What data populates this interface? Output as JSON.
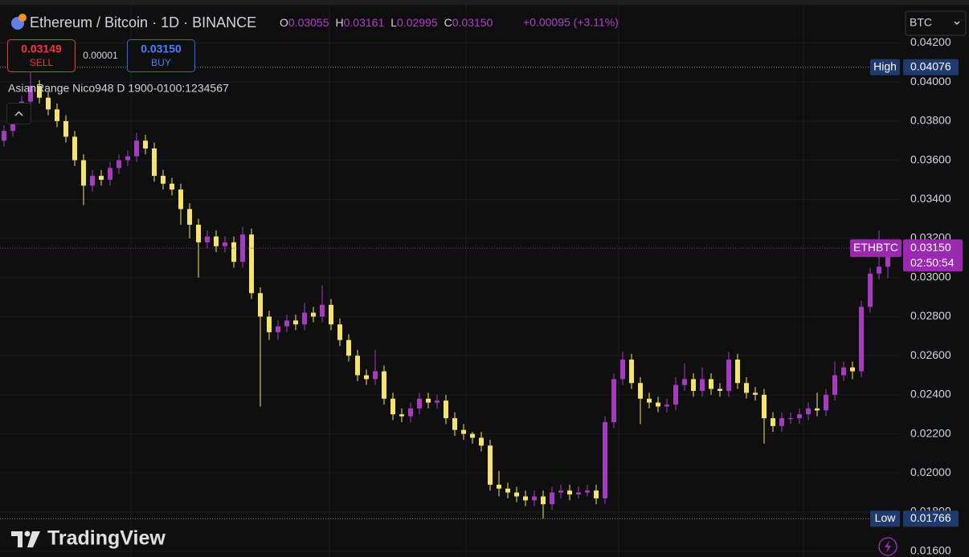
{
  "header": {
    "symbol": "Ethereum / Bitcoin · 1D · BINANCE",
    "ohlc": [
      {
        "key": "O",
        "value": "0.03055"
      },
      {
        "key": "H",
        "value": "0.03161"
      },
      {
        "key": "L",
        "value": "0.02995"
      },
      {
        "key": "C",
        "value": "0.03150"
      }
    ],
    "change": "+0.00095 (+3.11%)",
    "currency": "BTC"
  },
  "trade": {
    "sell_price": "0.03149",
    "sell_label": "SELL",
    "spread": "0.00001",
    "buy_price": "0.03150",
    "buy_label": "BUY"
  },
  "indicator": "AsianRange Nico948 D 1900-0100:1234567",
  "branding": "TradingView",
  "chart_data": {
    "type": "candlestick",
    "up_color": "#a63bc2",
    "down_color": "#f5e36b",
    "ylim": [
      0.0157,
      0.04395
    ],
    "yticks": [
      {
        "value": 0.042,
        "label": "0.04200"
      },
      {
        "value": 0.04,
        "label": "0.04000"
      },
      {
        "value": 0.038,
        "label": "0.03800"
      },
      {
        "value": 0.036,
        "label": "0.03600"
      },
      {
        "value": 0.034,
        "label": "0.03400"
      },
      {
        "value": 0.032,
        "label": "0.03200"
      },
      {
        "value": 0.03,
        "label": "0.03000"
      },
      {
        "value": 0.028,
        "label": "0.02800"
      },
      {
        "value": 0.026,
        "label": "0.02600"
      },
      {
        "value": 0.024,
        "label": "0.02400"
      },
      {
        "value": 0.022,
        "label": "0.02200"
      },
      {
        "value": 0.02,
        "label": "0.02000"
      },
      {
        "value": 0.018,
        "label": "0.01800"
      },
      {
        "value": 0.016,
        "label": "0.01600"
      }
    ],
    "grid": true,
    "high": {
      "label": "High",
      "value": 0.04076
    },
    "low": {
      "label": "Low",
      "value": 0.01766
    },
    "last": {
      "label": "ETHBTC",
      "value": {
        "value": 0.0315,
        "label": "0.03150"
      },
      "countdown": "02:50:54"
    },
    "ohlc": [
      [
        0.037,
        0.0378,
        0.0367,
        0.0375
      ],
      [
        0.0375,
        0.0385,
        0.0372,
        0.0382
      ],
      [
        0.0382,
        0.0393,
        0.0379,
        0.039
      ],
      [
        0.039,
        0.04076,
        0.0387,
        0.0398
      ],
      [
        0.0398,
        0.0401,
        0.0389,
        0.0392
      ],
      [
        0.0392,
        0.0395,
        0.0383,
        0.0386
      ],
      [
        0.0386,
        0.0389,
        0.0377,
        0.038
      ],
      [
        0.038,
        0.0383,
        0.0369,
        0.0372
      ],
      [
        0.0372,
        0.0375,
        0.0357,
        0.036
      ],
      [
        0.036,
        0.0363,
        0.0337,
        0.0347
      ],
      [
        0.0347,
        0.0355,
        0.0344,
        0.0352
      ],
      [
        0.0352,
        0.0355,
        0.0347,
        0.035
      ],
      [
        0.035,
        0.0359,
        0.0347,
        0.0356
      ],
      [
        0.0356,
        0.0363,
        0.0353,
        0.036
      ],
      [
        0.036,
        0.0365,
        0.0357,
        0.0362
      ],
      [
        0.0362,
        0.0374,
        0.0359,
        0.037
      ],
      [
        0.037,
        0.0373,
        0.0363,
        0.0366
      ],
      [
        0.0366,
        0.0369,
        0.0349,
        0.0352
      ],
      [
        0.0352,
        0.0355,
        0.0345,
        0.0348
      ],
      [
        0.0348,
        0.0351,
        0.0342,
        0.0345
      ],
      [
        0.0345,
        0.0348,
        0.0327,
        0.0335
      ],
      [
        0.0335,
        0.0338,
        0.032,
        0.0327
      ],
      [
        0.0327,
        0.033,
        0.03,
        0.0318
      ],
      [
        0.0318,
        0.0324,
        0.0315,
        0.0321
      ],
      [
        0.0321,
        0.0324,
        0.0313,
        0.0316
      ],
      [
        0.0316,
        0.0321,
        0.0313,
        0.0318
      ],
      [
        0.0318,
        0.0321,
        0.0305,
        0.0308
      ],
      [
        0.0308,
        0.0326,
        0.0305,
        0.0322
      ],
      [
        0.0322,
        0.0325,
        0.0289,
        0.0292
      ],
      [
        0.0292,
        0.0295,
        0.0234,
        0.028
      ],
      [
        0.028,
        0.0283,
        0.0268,
        0.0272
      ],
      [
        0.0272,
        0.0278,
        0.0268,
        0.0275
      ],
      [
        0.0275,
        0.0281,
        0.0272,
        0.0278
      ],
      [
        0.0278,
        0.0281,
        0.0273,
        0.0276
      ],
      [
        0.0276,
        0.0287,
        0.0273,
        0.0282
      ],
      [
        0.0282,
        0.0285,
        0.0277,
        0.028
      ],
      [
        0.028,
        0.0296,
        0.0277,
        0.0286
      ],
      [
        0.0286,
        0.0289,
        0.0273,
        0.0276
      ],
      [
        0.0276,
        0.0279,
        0.0265,
        0.0268
      ],
      [
        0.0268,
        0.0271,
        0.0257,
        0.026
      ],
      [
        0.026,
        0.0263,
        0.0247,
        0.025
      ],
      [
        0.025,
        0.0253,
        0.0245,
        0.0248
      ],
      [
        0.0248,
        0.0263,
        0.0245,
        0.0252
      ],
      [
        0.0252,
        0.0255,
        0.0235,
        0.0238
      ],
      [
        0.0238,
        0.0241,
        0.0227,
        0.023
      ],
      [
        0.023,
        0.0233,
        0.0226,
        0.0229
      ],
      [
        0.0229,
        0.0236,
        0.0226,
        0.0233
      ],
      [
        0.0233,
        0.0241,
        0.023,
        0.0238
      ],
      [
        0.0238,
        0.0241,
        0.0233,
        0.0236
      ],
      [
        0.0236,
        0.024,
        0.0233,
        0.0237
      ],
      [
        0.0237,
        0.024,
        0.0225,
        0.0228
      ],
      [
        0.0228,
        0.0231,
        0.0219,
        0.0222
      ],
      [
        0.0222,
        0.0225,
        0.0217,
        0.022
      ],
      [
        0.022,
        0.0221,
        0.0215,
        0.0218
      ],
      [
        0.0218,
        0.0221,
        0.0211,
        0.0214
      ],
      [
        0.0214,
        0.0217,
        0.0191,
        0.0194
      ],
      [
        0.0194,
        0.0201,
        0.0188,
        0.0192
      ],
      [
        0.0192,
        0.0195,
        0.0187,
        0.019
      ],
      [
        0.019,
        0.0193,
        0.0185,
        0.0188
      ],
      [
        0.0188,
        0.0191,
        0.0183,
        0.0186
      ],
      [
        0.0186,
        0.0191,
        0.0183,
        0.0188
      ],
      [
        0.0188,
        0.0191,
        0.01766,
        0.0184
      ],
      [
        0.0184,
        0.0193,
        0.0181,
        0.019
      ],
      [
        0.019,
        0.0194,
        0.0187,
        0.0191
      ],
      [
        0.0191,
        0.0194,
        0.0186,
        0.0189
      ],
      [
        0.0189,
        0.0193,
        0.0187,
        0.019
      ],
      [
        0.019,
        0.0194,
        0.0188,
        0.0191
      ],
      [
        0.0191,
        0.0194,
        0.0184,
        0.0187
      ],
      [
        0.0187,
        0.0229,
        0.0184,
        0.0226
      ],
      [
        0.0226,
        0.0251,
        0.0223,
        0.0248
      ],
      [
        0.0248,
        0.0262,
        0.0245,
        0.0258
      ],
      [
        0.0258,
        0.0261,
        0.0243,
        0.0246
      ],
      [
        0.0246,
        0.0249,
        0.0225,
        0.0238
      ],
      [
        0.0238,
        0.0241,
        0.0233,
        0.0236
      ],
      [
        0.0236,
        0.0239,
        0.0231,
        0.0234
      ],
      [
        0.0234,
        0.0238,
        0.0231,
        0.0235
      ],
      [
        0.0235,
        0.0249,
        0.0232,
        0.0245
      ],
      [
        0.0245,
        0.0256,
        0.0242,
        0.0248
      ],
      [
        0.0248,
        0.0251,
        0.0239,
        0.0242
      ],
      [
        0.0242,
        0.0254,
        0.0239,
        0.0248
      ],
      [
        0.0248,
        0.0251,
        0.024,
        0.0243
      ],
      [
        0.0243,
        0.0246,
        0.0239,
        0.0242
      ],
      [
        0.0242,
        0.0262,
        0.0239,
        0.0258
      ],
      [
        0.0258,
        0.0261,
        0.0243,
        0.0246
      ],
      [
        0.0246,
        0.0249,
        0.0238,
        0.0241
      ],
      [
        0.0241,
        0.0244,
        0.0237,
        0.024
      ],
      [
        0.024,
        0.0243,
        0.0215,
        0.0228
      ],
      [
        0.0228,
        0.0231,
        0.0221,
        0.0224
      ],
      [
        0.0224,
        0.0231,
        0.0221,
        0.0228
      ],
      [
        0.0228,
        0.0231,
        0.0225,
        0.0228
      ],
      [
        0.0228,
        0.0233,
        0.0225,
        0.023
      ],
      [
        0.023,
        0.0236,
        0.0227,
        0.0233
      ],
      [
        0.0233,
        0.0241,
        0.0229,
        0.0232
      ],
      [
        0.0232,
        0.0243,
        0.0229,
        0.024
      ],
      [
        0.024,
        0.0257,
        0.0237,
        0.025
      ],
      [
        0.025,
        0.0257,
        0.0247,
        0.0254
      ],
      [
        0.0254,
        0.0257,
        0.0248,
        0.0252
      ],
      [
        0.0252,
        0.0288,
        0.0249,
        0.0285
      ],
      [
        0.0285,
        0.0305,
        0.0282,
        0.0302
      ],
      [
        0.0302,
        0.0324,
        0.0299,
        0.03055
      ],
      [
        0.03055,
        0.03161,
        0.02995,
        0.0315
      ]
    ]
  }
}
